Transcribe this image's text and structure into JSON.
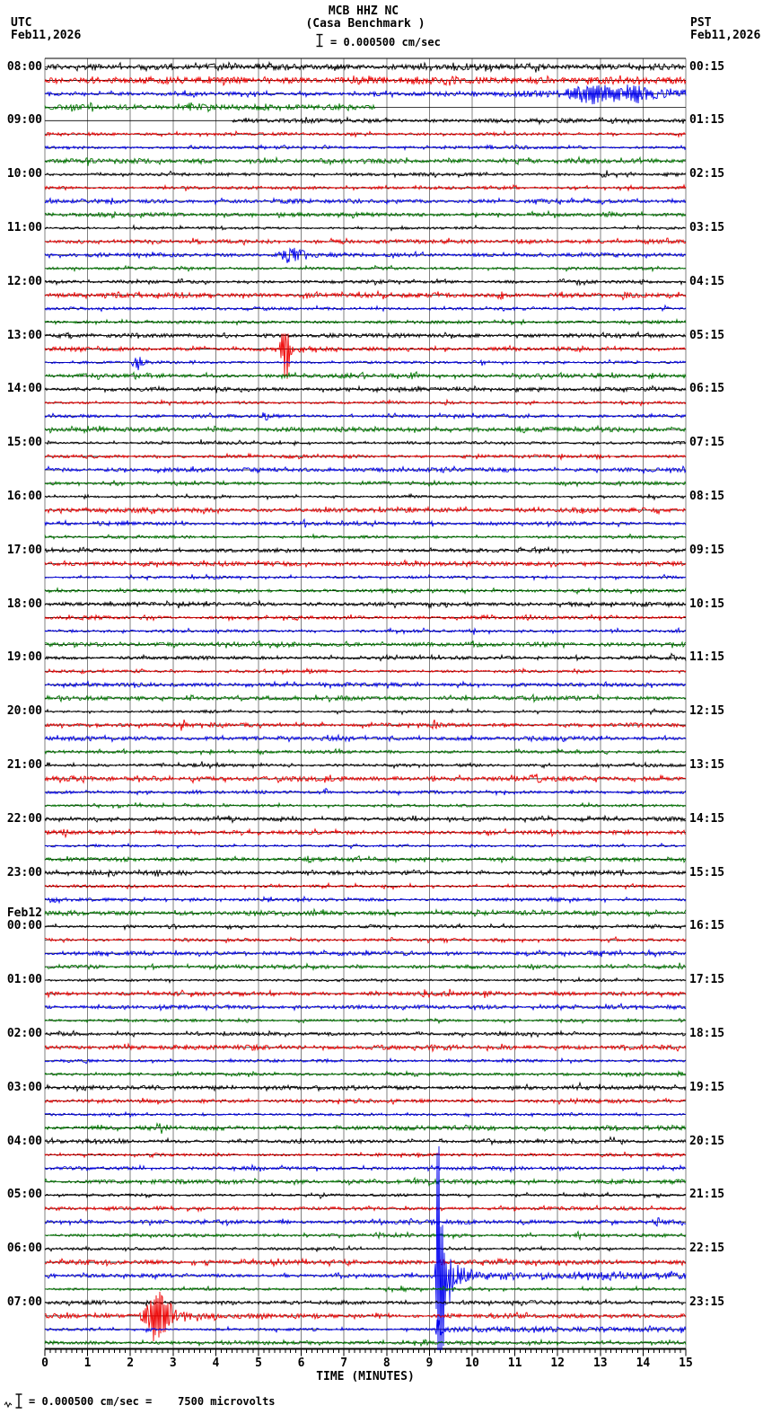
{
  "header": {
    "tz_left": "UTC",
    "date_left": "Feb11,2026",
    "tz_right": "PST",
    "date_right": "Feb11,2026",
    "title": "MCB HHZ NC",
    "subtitle": "(Casa Benchmark )",
    "scale_label": "= 0.000500 cm/sec"
  },
  "axis": {
    "label": "TIME (MINUTES)",
    "ticks": [
      "0",
      "1",
      "2",
      "3",
      "4",
      "5",
      "6",
      "7",
      "8",
      "9",
      "10",
      "11",
      "12",
      "13",
      "14",
      "15"
    ]
  },
  "footnote": {
    "text": "= 0.000500 cm/sec =    7500 microvolts"
  },
  "chart_data": {
    "type": "line",
    "subtype": "helicorder-seismogram",
    "station": "MCB HHZ NC",
    "station_description": "(Casa Benchmark )",
    "amplitude_scale": "= 0.000500 cm/sec",
    "utc_date": "Feb11,2026",
    "pst_date": "Feb11,2026",
    "minutes_per_row": 15,
    "num_rows": 96,
    "x_range_minutes": [
      0,
      15
    ],
    "trace_color_cycle": [
      "#000000",
      "#ee0000",
      "#0000ee",
      "#007a00"
    ],
    "grid_color": "#808080",
    "left_time_labels": [
      {
        "row": 0,
        "lines": [
          "08:00"
        ]
      },
      {
        "row": 4,
        "lines": [
          "09:00"
        ]
      },
      {
        "row": 8,
        "lines": [
          "10:00"
        ]
      },
      {
        "row": 12,
        "lines": [
          "11:00"
        ]
      },
      {
        "row": 16,
        "lines": [
          "12:00"
        ]
      },
      {
        "row": 20,
        "lines": [
          "13:00"
        ]
      },
      {
        "row": 24,
        "lines": [
          "14:00"
        ]
      },
      {
        "row": 28,
        "lines": [
          "15:00"
        ]
      },
      {
        "row": 32,
        "lines": [
          "16:00"
        ]
      },
      {
        "row": 36,
        "lines": [
          "17:00"
        ]
      },
      {
        "row": 40,
        "lines": [
          "18:00"
        ]
      },
      {
        "row": 44,
        "lines": [
          "19:00"
        ]
      },
      {
        "row": 48,
        "lines": [
          "20:00"
        ]
      },
      {
        "row": 52,
        "lines": [
          "21:00"
        ]
      },
      {
        "row": 56,
        "lines": [
          "22:00"
        ]
      },
      {
        "row": 60,
        "lines": [
          "23:00"
        ]
      },
      {
        "row": 64,
        "lines": [
          "Feb12",
          "00:00"
        ]
      },
      {
        "row": 68,
        "lines": [
          "01:00"
        ]
      },
      {
        "row": 72,
        "lines": [
          "02:00"
        ]
      },
      {
        "row": 76,
        "lines": [
          "03:00"
        ]
      },
      {
        "row": 80,
        "lines": [
          "04:00"
        ]
      },
      {
        "row": 84,
        "lines": [
          "05:00"
        ]
      },
      {
        "row": 88,
        "lines": [
          "06:00"
        ]
      },
      {
        "row": 92,
        "lines": [
          "07:00"
        ]
      }
    ],
    "right_time_labels": [
      {
        "row": 0,
        "text": "00:15"
      },
      {
        "row": 4,
        "text": "01:15"
      },
      {
        "row": 8,
        "text": "02:15"
      },
      {
        "row": 12,
        "text": "03:15"
      },
      {
        "row": 16,
        "text": "04:15"
      },
      {
        "row": 20,
        "text": "05:15"
      },
      {
        "row": 24,
        "text": "06:15"
      },
      {
        "row": 28,
        "text": "07:15"
      },
      {
        "row": 32,
        "text": "08:15"
      },
      {
        "row": 36,
        "text": "09:15"
      },
      {
        "row": 40,
        "text": "10:15"
      },
      {
        "row": 44,
        "text": "11:15"
      },
      {
        "row": 48,
        "text": "12:15"
      },
      {
        "row": 52,
        "text": "13:15"
      },
      {
        "row": 56,
        "text": "14:15"
      },
      {
        "row": 60,
        "text": "15:15"
      },
      {
        "row": 64,
        "text": "16:15"
      },
      {
        "row": 68,
        "text": "17:15"
      },
      {
        "row": 72,
        "text": "18:15"
      },
      {
        "row": 76,
        "text": "19:15"
      },
      {
        "row": 80,
        "text": "20:15"
      },
      {
        "row": 84,
        "text": "21:15"
      },
      {
        "row": 88,
        "text": "22:15"
      },
      {
        "row": 92,
        "text": "23:15"
      }
    ],
    "gaps": [
      {
        "row": 3,
        "t0": 7.75,
        "t1": 15
      },
      {
        "row": 4,
        "t0": 0,
        "t1": 4.35
      }
    ],
    "events": [
      {
        "row": 2,
        "type": "elevated",
        "t0": 10.3,
        "t1": 15,
        "amp": 2.2,
        "ramp": 1.2
      },
      {
        "row": 2,
        "type": "burst",
        "t0": 12.1,
        "t1": 14.5,
        "peak": 11,
        "peak_at": 12.8,
        "sigma": 0.42,
        "second_peak": 6,
        "second_at": 13.7,
        "second_sigma": 0.42,
        "tailp": 3,
        "tailtau": 0.6
      },
      {
        "row": 14,
        "type": "burst",
        "t0": 5.45,
        "t1": 7.3,
        "peak": 7,
        "peak_at": 5.75,
        "sigma": 0.3,
        "tailp": 2.5,
        "tailtau": 0.5
      },
      {
        "row": 21,
        "type": "burst",
        "t0": 5.5,
        "t1": 6.4,
        "peak": 32,
        "peak_at": 5.62,
        "sigma": 0.1,
        "tailp": 5,
        "tailtau": 0.3,
        "down_bias": 1.35,
        "clamp_up": 17,
        "clamp_down": 42
      },
      {
        "row": 22,
        "type": "burst",
        "t0": 2.0,
        "t1": 2.8,
        "peak": 8.5,
        "peak_at": 2.18,
        "sigma": 0.12,
        "tailp": 2.5,
        "tailtau": 0.25
      },
      {
        "row": 90,
        "type": "burst",
        "t0": 9.12,
        "t1": 11.6,
        "peak": 150,
        "peak_at": 9.205,
        "sigma": 0.05,
        "second_peak": 70,
        "second_at": 9.28,
        "second_sigma": 0.09,
        "tailp": 30,
        "tailtau": 0.35,
        "clamp_up": 144,
        "clamp_down": 83
      },
      {
        "row": 90,
        "type": "burst",
        "t0": 9.3,
        "t1": 10.6,
        "peak": 14,
        "peak_at": 9.48,
        "sigma": 0.12,
        "tailp": 6,
        "tailtau": 0.4
      },
      {
        "row": 90,
        "type": "elevated",
        "t0": 10.6,
        "t1": 15,
        "amp": 1.7,
        "ramp": 0
      },
      {
        "row": 93,
        "type": "burst",
        "t0": 2.22,
        "t1": 4.7,
        "peak": 30,
        "peak_at": 2.68,
        "sigma": 0.28,
        "tailp": 8,
        "tailtau": 0.45,
        "down_bias": 1.3
      },
      {
        "row": 94,
        "type": "elevated",
        "t0": 9.05,
        "t1": 15,
        "amp": 1.4,
        "ramp": 0.3
      },
      {
        "row": 94,
        "type": "burst",
        "t0": 9.13,
        "t1": 9.45,
        "peak": 22,
        "peak_at": 9.2,
        "sigma": 0.05,
        "tailp": 3,
        "tailtau": 0.3
      }
    ]
  }
}
